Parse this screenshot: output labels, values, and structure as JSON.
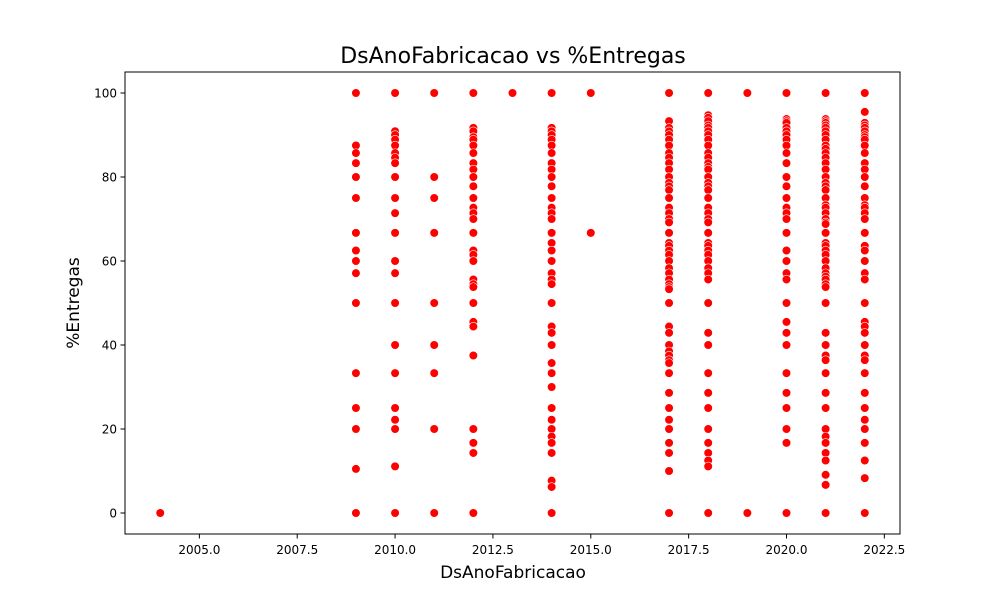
{
  "chart_data": {
    "type": "scatter",
    "title": "DsAnoFabricacao vs %Entregas",
    "xlabel": "DsAnoFabricacao",
    "ylabel": "%Entregas",
    "xlim": [
      2003.1,
      2022.9
    ],
    "ylim": [
      -5,
      105
    ],
    "xticks": [
      2005.0,
      2007.5,
      2010.0,
      2012.5,
      2015.0,
      2017.5,
      2020.0,
      2022.5
    ],
    "yticks": [
      0,
      20,
      40,
      60,
      80,
      100
    ],
    "grid": false,
    "marker_color": "#ff0000",
    "points_by_x": [
      {
        "x": 2004,
        "y": [
          0
        ]
      },
      {
        "x": 2009,
        "y": [
          100,
          87.5,
          85.7,
          83.3,
          80,
          75,
          66.7,
          62.5,
          60,
          57.1,
          50,
          33.3,
          25,
          20,
          10.5,
          0
        ]
      },
      {
        "x": 2010,
        "y": [
          100,
          90.9,
          90,
          88.9,
          87.5,
          85.7,
          84.6,
          83.3,
          80,
          75,
          71.4,
          66.7,
          60,
          57.1,
          50,
          40,
          33.3,
          25,
          22.2,
          20,
          11.1,
          0
        ]
      },
      {
        "x": 2011,
        "y": [
          100,
          80,
          75,
          66.7,
          50,
          40,
          33.3,
          20,
          0
        ]
      },
      {
        "x": 2012,
        "y": [
          100,
          91.7,
          90.9,
          89.5,
          88.9,
          87.5,
          85.7,
          83.3,
          81.8,
          80,
          77.8,
          75,
          72.7,
          71.4,
          70,
          66.7,
          62.5,
          61.5,
          60,
          55.6,
          54.5,
          53.8,
          50,
          45.5,
          44.4,
          37.5,
          20,
          16.7,
          14.3,
          0
        ]
      },
      {
        "x": 2013,
        "y": [
          100
        ]
      },
      {
        "x": 2014,
        "y": [
          100,
          91.7,
          90.9,
          90,
          88.9,
          87.5,
          85.7,
          83.3,
          81.8,
          80,
          77.8,
          75,
          72.7,
          71.4,
          70,
          66.7,
          64.3,
          62.5,
          60,
          57.1,
          55.6,
          54.5,
          50,
          44.4,
          42.9,
          40,
          35.7,
          33.3,
          30,
          25,
          22.2,
          20,
          18.2,
          16.7,
          14.3,
          7.7,
          6.2,
          0
        ]
      },
      {
        "x": 2015,
        "y": [
          100,
          66.7
        ]
      },
      {
        "x": 2017,
        "y": [
          100,
          93.3,
          91.7,
          90.9,
          90,
          88.9,
          87.5,
          85.7,
          84.6,
          83.3,
          81.8,
          80,
          78.6,
          77.8,
          76.9,
          75,
          72.7,
          71.4,
          70,
          69.2,
          66.7,
          64.3,
          63.6,
          62.5,
          61.5,
          60,
          58.3,
          57.1,
          55.6,
          54.5,
          53.8,
          53.3,
          50,
          44.4,
          42.9,
          40,
          38.5,
          37.5,
          36.4,
          35.7,
          33.3,
          28.6,
          25,
          22.2,
          20,
          16.7,
          14.3,
          10,
          0
        ]
      },
      {
        "x": 2018,
        "y": [
          100,
          94.7,
          94.1,
          93.3,
          92.3,
          91.7,
          90.9,
          90,
          88.9,
          87.5,
          85.7,
          84.6,
          83.3,
          82.4,
          81.8,
          80,
          78.6,
          77.8,
          76.9,
          75,
          72.7,
          71.4,
          70,
          69.2,
          66.7,
          64.3,
          63.6,
          62.5,
          61.5,
          60,
          58.3,
          57.1,
          55.6,
          50,
          42.9,
          40,
          33.3,
          28.6,
          25,
          20,
          16.7,
          14.3,
          12.5,
          11.1,
          0
        ]
      },
      {
        "x": 2019,
        "y": [
          100,
          0
        ]
      },
      {
        "x": 2020,
        "y": [
          100,
          93.8,
          93.3,
          92.9,
          91.7,
          90.9,
          90,
          88.9,
          87.5,
          85.7,
          83.3,
          80,
          77.8,
          75,
          72.7,
          71.4,
          70,
          66.7,
          62.5,
          60,
          57.1,
          55.6,
          50,
          45.5,
          42.9,
          40,
          33.3,
          28.6,
          25,
          20,
          16.7,
          0
        ]
      },
      {
        "x": 2021,
        "y": [
          100,
          93.8,
          93.3,
          92.9,
          92.3,
          91.7,
          90.9,
          90,
          88.9,
          87.5,
          86.7,
          85.7,
          84.6,
          83.3,
          81.8,
          80,
          78.6,
          77.8,
          76.9,
          75,
          73.3,
          72.7,
          71.4,
          70,
          69.2,
          68.8,
          66.7,
          64.3,
          63.6,
          62.5,
          61.5,
          60,
          58.3,
          57.1,
          56.3,
          55.6,
          54.5,
          53.8,
          50,
          42.9,
          40,
          37.5,
          36.4,
          33.3,
          28.6,
          25,
          20,
          18.2,
          16.7,
          14.3,
          12.5,
          9.1,
          6.7,
          0
        ]
      },
      {
        "x": 2022,
        "y": [
          100,
          95.5,
          92.9,
          92.3,
          91.7,
          90.9,
          90,
          89.5,
          88.9,
          87.5,
          85.7,
          83.3,
          81.8,
          80,
          77.8,
          75,
          73.3,
          72.7,
          71.4,
          70,
          66.7,
          63.6,
          62.5,
          60,
          57.1,
          55.6,
          50,
          45.5,
          44.4,
          42.9,
          40,
          37.5,
          36.4,
          33.3,
          28.6,
          25,
          22.2,
          20,
          16.7,
          12.5,
          8.3,
          0
        ]
      }
    ]
  }
}
